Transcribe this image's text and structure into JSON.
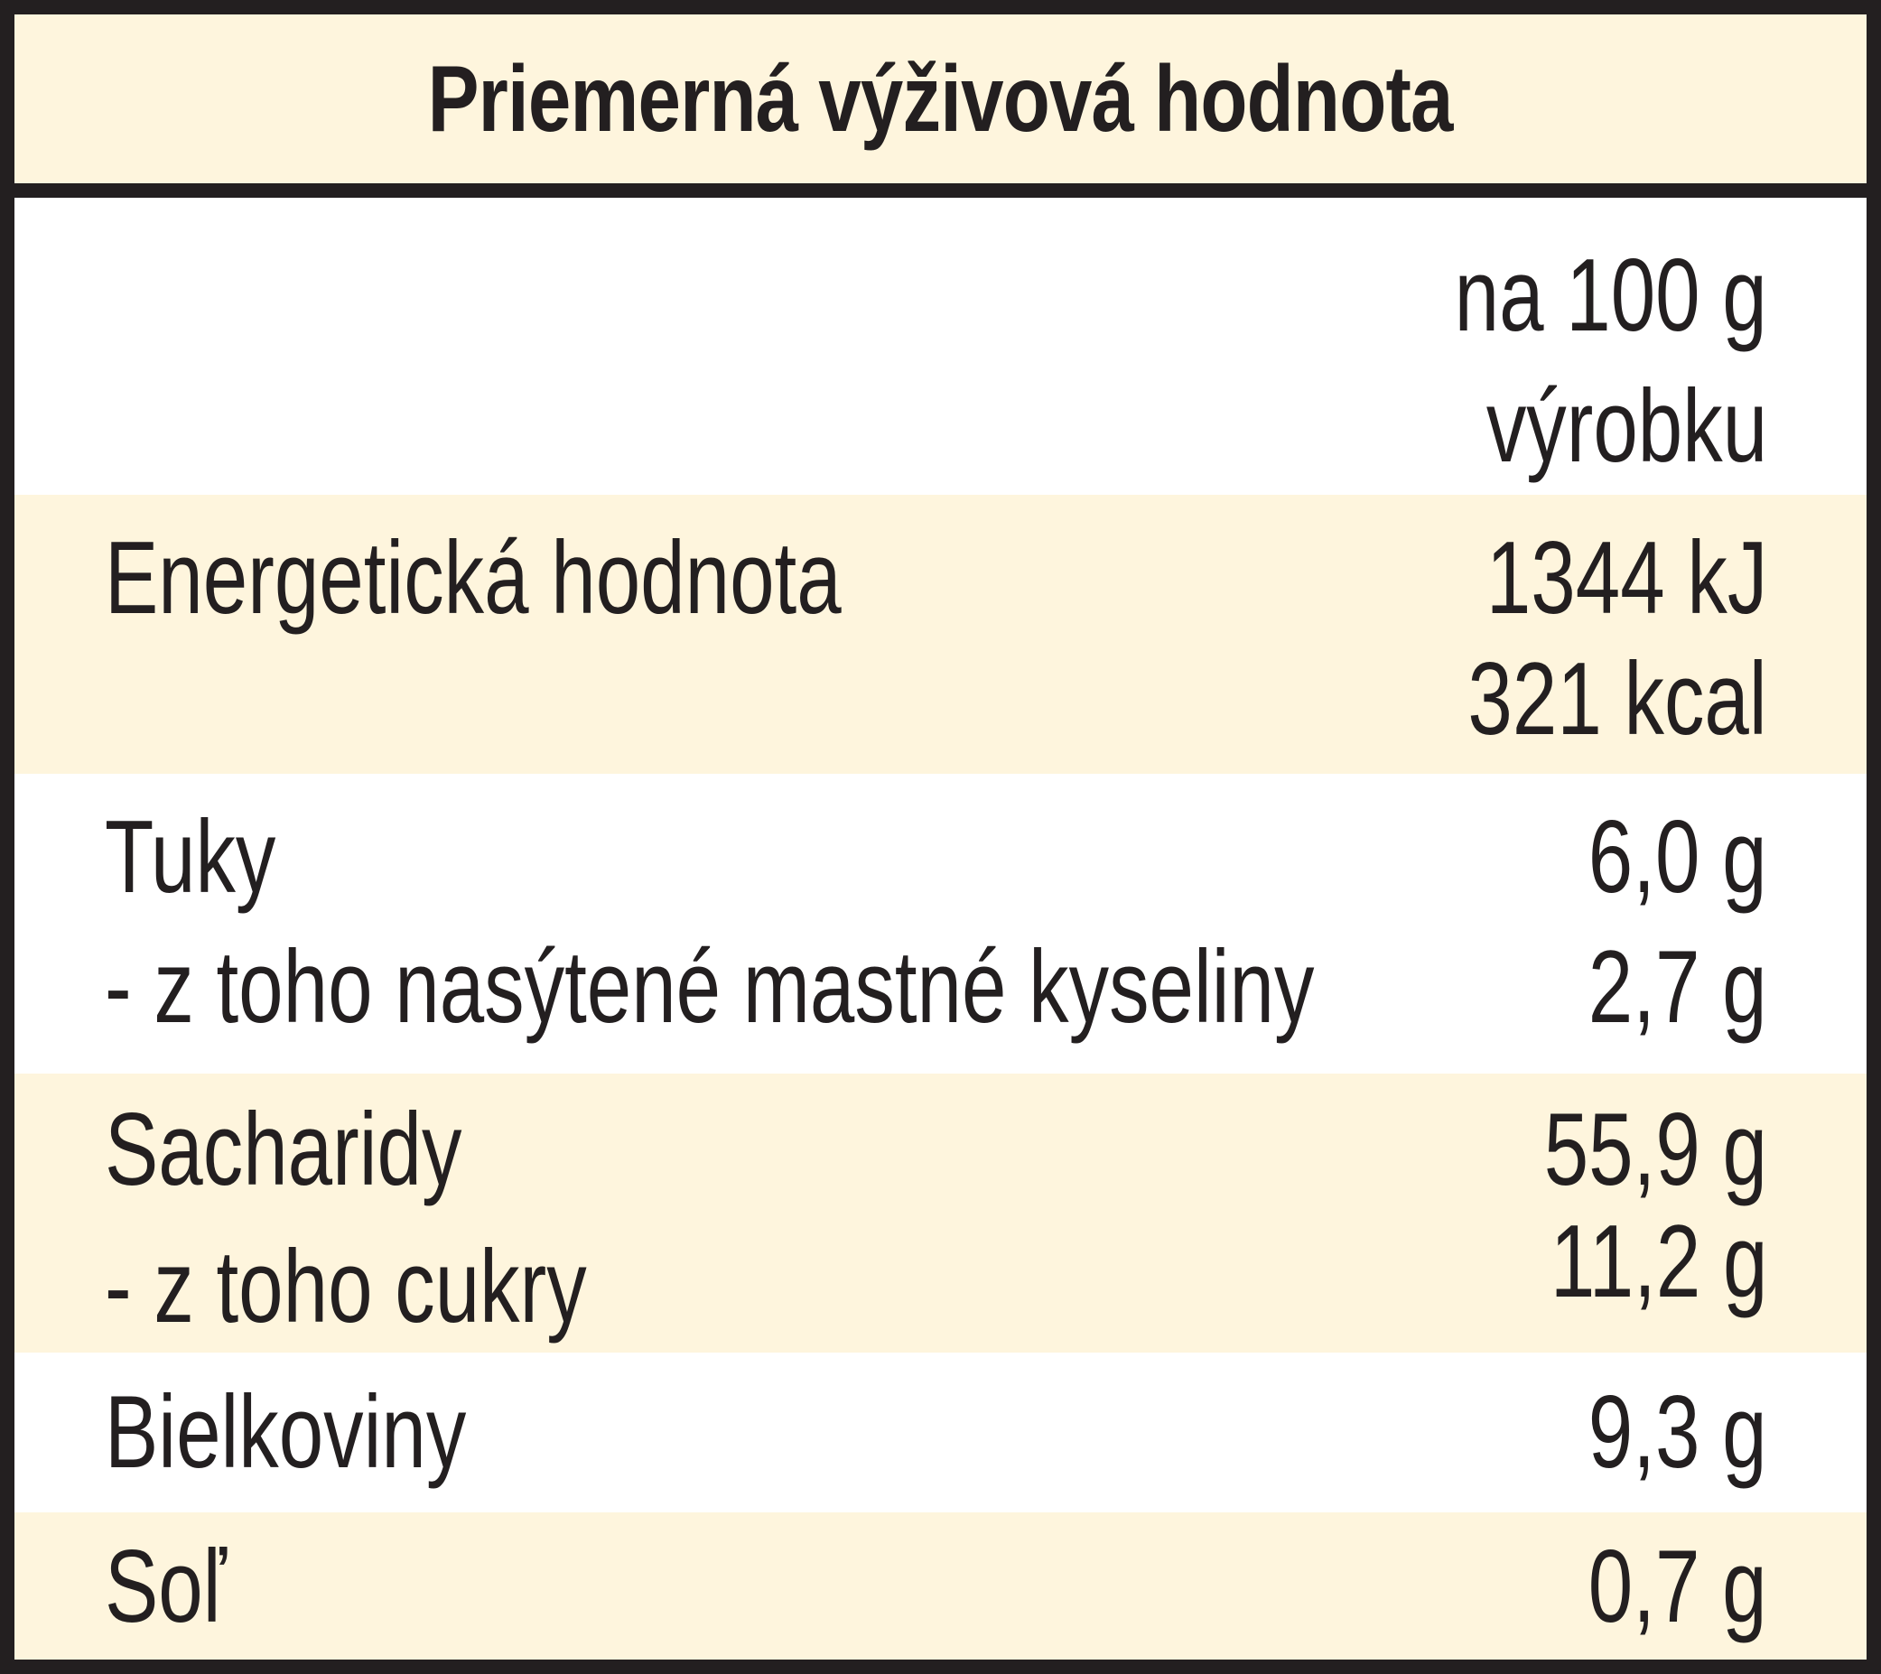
{
  "title": "Priemerná výživová hodnota",
  "header": {
    "per_line1": "na 100 g",
    "per_line2": "výrobku"
  },
  "rows": [
    {
      "label": "Energetická hodnota",
      "value1": "1344 kJ",
      "value2": "321 kcal"
    },
    {
      "label": "Tuky",
      "value": "6,0 g"
    },
    {
      "label": "- z toho nasýtené mastné kyseliny",
      "value": "2,7 g"
    },
    {
      "label": "Sacharidy",
      "value": "55,9 g"
    },
    {
      "label": "- z toho cukry",
      "value": "11,2 g"
    },
    {
      "label": "Bielkoviny",
      "value": "9,3 g"
    },
    {
      "label": "Soľ",
      "value": "0,7 g"
    }
  ],
  "colors": {
    "border": "#231f20",
    "shade": "#fef5dd",
    "text": "#231f20"
  }
}
